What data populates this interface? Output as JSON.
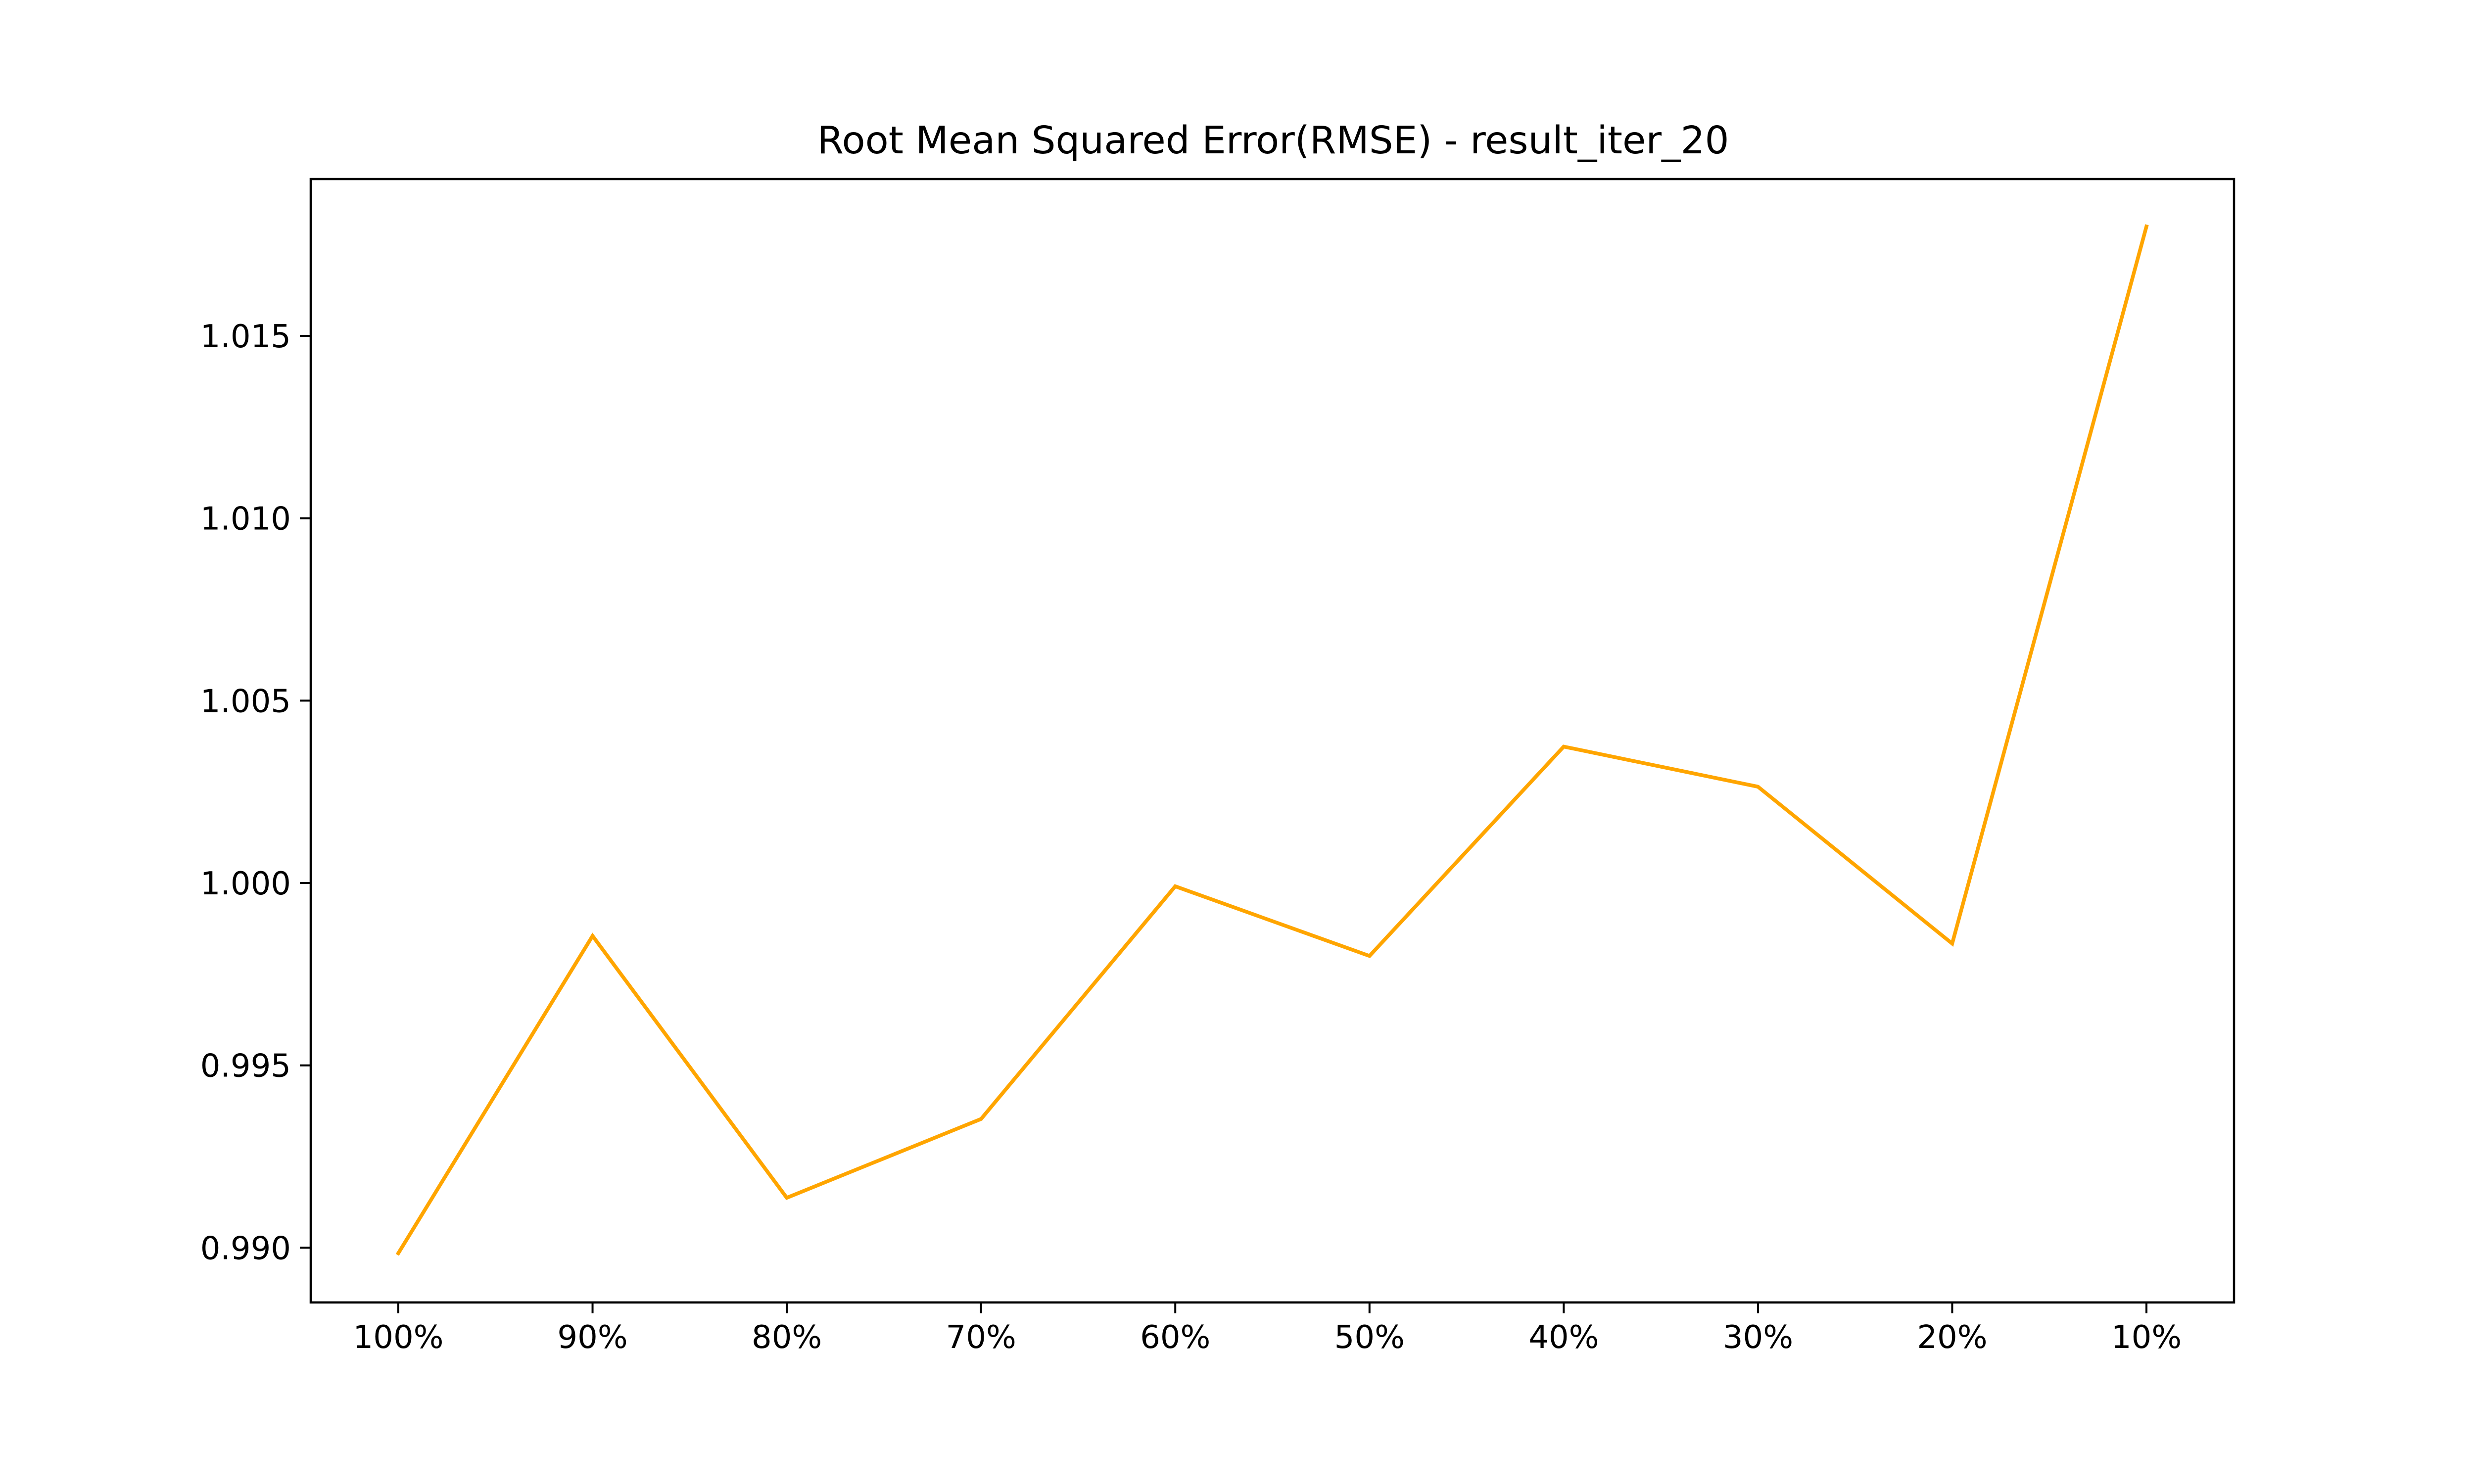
{
  "chart_data": {
    "type": "line",
    "title": "Root Mean Squared Error(RMSE) - result_iter_20",
    "xlabel": "",
    "ylabel": "",
    "categories": [
      "100%",
      "90%",
      "80%",
      "70%",
      "60%",
      "50%",
      "40%",
      "30%",
      "20%",
      "10%"
    ],
    "series": [
      {
        "values": [
          0.98985,
          0.99855,
          0.99137,
          0.99353,
          0.99991,
          0.998,
          1.00374,
          1.00264,
          0.99834,
          1.018
        ],
        "color": "#ffa500"
      }
    ],
    "ylim": [
      0.9885,
      1.0193
    ],
    "yticks": [
      0.99,
      0.995,
      1.0,
      1.005,
      1.01,
      1.015
    ],
    "ytick_labels": [
      "0.990",
      "0.995",
      "1.000",
      "1.005",
      "1.010",
      "1.015"
    ],
    "grid": false,
    "legend": "none"
  }
}
